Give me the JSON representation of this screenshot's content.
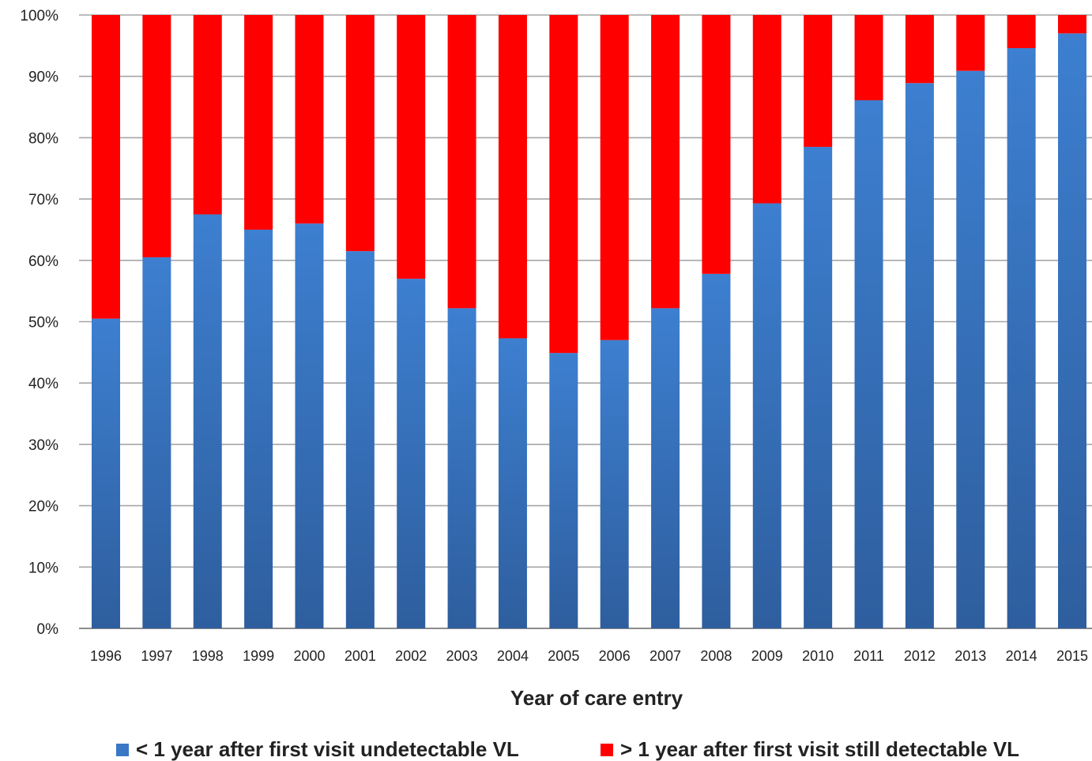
{
  "chart_data": {
    "type": "bar",
    "stacked": true,
    "percent_stacked": true,
    "categories": [
      "1996",
      "1997",
      "1998",
      "1999",
      "2000",
      "2001",
      "2002",
      "2003",
      "2004",
      "2005",
      "2006",
      "2007",
      "2008",
      "2009",
      "2010",
      "2011",
      "2012",
      "2013",
      "2014",
      "2015"
    ],
    "series": [
      {
        "name": "< 1 year after first visit undetectable VL",
        "color": "#3a78c6",
        "values": [
          50.5,
          60.5,
          67.5,
          65,
          66,
          61.5,
          57,
          52.2,
          47.3,
          44.9,
          47,
          52.2,
          57.8,
          69.3,
          78.5,
          86.1,
          88.9,
          90.9,
          94.6,
          97
        ]
      },
      {
        "name": "> 1 year after first visit still detectable VL",
        "color": "#ff0000",
        "values": [
          49.5,
          39.5,
          32.5,
          35,
          34,
          38.5,
          43,
          47.8,
          52.7,
          55.1,
          53,
          47.8,
          42.2,
          30.7,
          21.5,
          13.9,
          11.1,
          9.1,
          5.4,
          3
        ]
      }
    ],
    "yticks": [
      "0%",
      "10%",
      "20%",
      "30%",
      "40%",
      "50%",
      "60%",
      "70%",
      "80%",
      "90%",
      "100%"
    ],
    "ylim": [
      0,
      100
    ],
    "xlabel": "Year of care entry",
    "ylabel": "",
    "grid": true,
    "legend_position": "bottom"
  }
}
